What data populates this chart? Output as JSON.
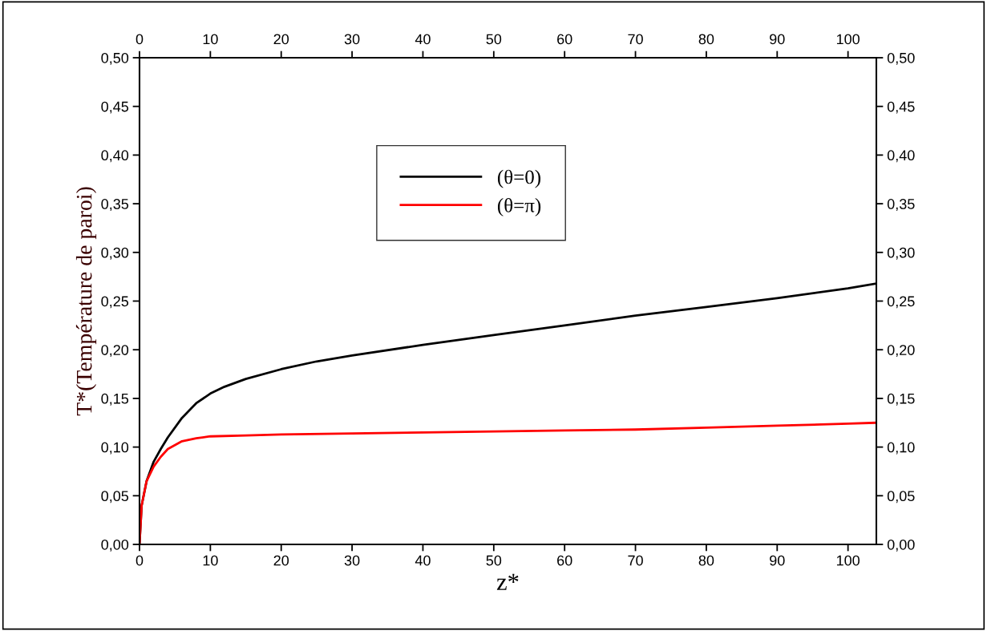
{
  "chart_data": {
    "type": "line",
    "xlabel": "z*",
    "ylabel": "T*(Température de paroi)",
    "xlim": [
      0,
      104
    ],
    "x2lim": [
      0,
      104
    ],
    "xticks": [
      0,
      10,
      20,
      30,
      40,
      50,
      60,
      70,
      80,
      90,
      100
    ],
    "x2ticks": [
      0,
      10,
      20,
      30,
      40,
      50,
      60,
      70,
      80,
      90,
      100
    ],
    "ylim": [
      0,
      0.5
    ],
    "y2lim": [
      0,
      0.5
    ],
    "yticks": [
      {
        "value": 0,
        "label": "0,00"
      },
      {
        "value": 0.05,
        "label": "0,05"
      },
      {
        "value": 0.1,
        "label": "0,10"
      },
      {
        "value": 0.15,
        "label": "0,15"
      },
      {
        "value": 0.2,
        "label": "0,20"
      },
      {
        "value": 0.25,
        "label": "0,25"
      },
      {
        "value": 0.3,
        "label": "0,30"
      },
      {
        "value": 0.35,
        "label": "0,35"
      },
      {
        "value": 0.4,
        "label": "0,40"
      },
      {
        "value": 0.45,
        "label": "0,45"
      },
      {
        "value": 0.5,
        "label": "0,50"
      }
    ],
    "y2ticks": [
      {
        "value": 0,
        "label": "0,00"
      },
      {
        "value": 0.05,
        "label": "0,05"
      },
      {
        "value": 0.1,
        "label": "0,10"
      },
      {
        "value": 0.15,
        "label": "0,15"
      },
      {
        "value": 0.2,
        "label": "0,20"
      },
      {
        "value": 0.25,
        "label": "0,25"
      },
      {
        "value": 0.3,
        "label": "0,30"
      },
      {
        "value": 0.35,
        "label": "0,35"
      },
      {
        "value": 0.4,
        "label": "0,40"
      },
      {
        "value": 0.45,
        "label": "0,45"
      },
      {
        "value": 0.5,
        "label": "0,50"
      }
    ],
    "grid": false,
    "legend": "top",
    "marker": "none",
    "line_style": "solid",
    "series": [
      {
        "name": "(θ=0)",
        "color": "#000000",
        "x": [
          0,
          0.3,
          1,
          2,
          3,
          4,
          6,
          8,
          10,
          12,
          15,
          20,
          25,
          30,
          40,
          50,
          60,
          70,
          80,
          90,
          100,
          104
        ],
        "values": [
          0,
          0.04,
          0.065,
          0.085,
          0.098,
          0.11,
          0.13,
          0.145,
          0.155,
          0.162,
          0.17,
          0.18,
          0.188,
          0.194,
          0.205,
          0.215,
          0.225,
          0.235,
          0.244,
          0.253,
          0.263,
          0.268
        ]
      },
      {
        "name": "(θ=π)",
        "color": "#ff0000",
        "x": [
          0,
          0.3,
          1,
          2,
          3,
          4,
          6,
          8,
          10,
          15,
          20,
          30,
          40,
          50,
          60,
          70,
          80,
          90,
          100,
          104
        ],
        "values": [
          0,
          0.04,
          0.065,
          0.08,
          0.09,
          0.098,
          0.106,
          0.109,
          0.111,
          0.112,
          0.113,
          0.114,
          0.115,
          0.116,
          0.117,
          0.118,
          0.12,
          0.122,
          0.124,
          0.125
        ]
      }
    ]
  }
}
